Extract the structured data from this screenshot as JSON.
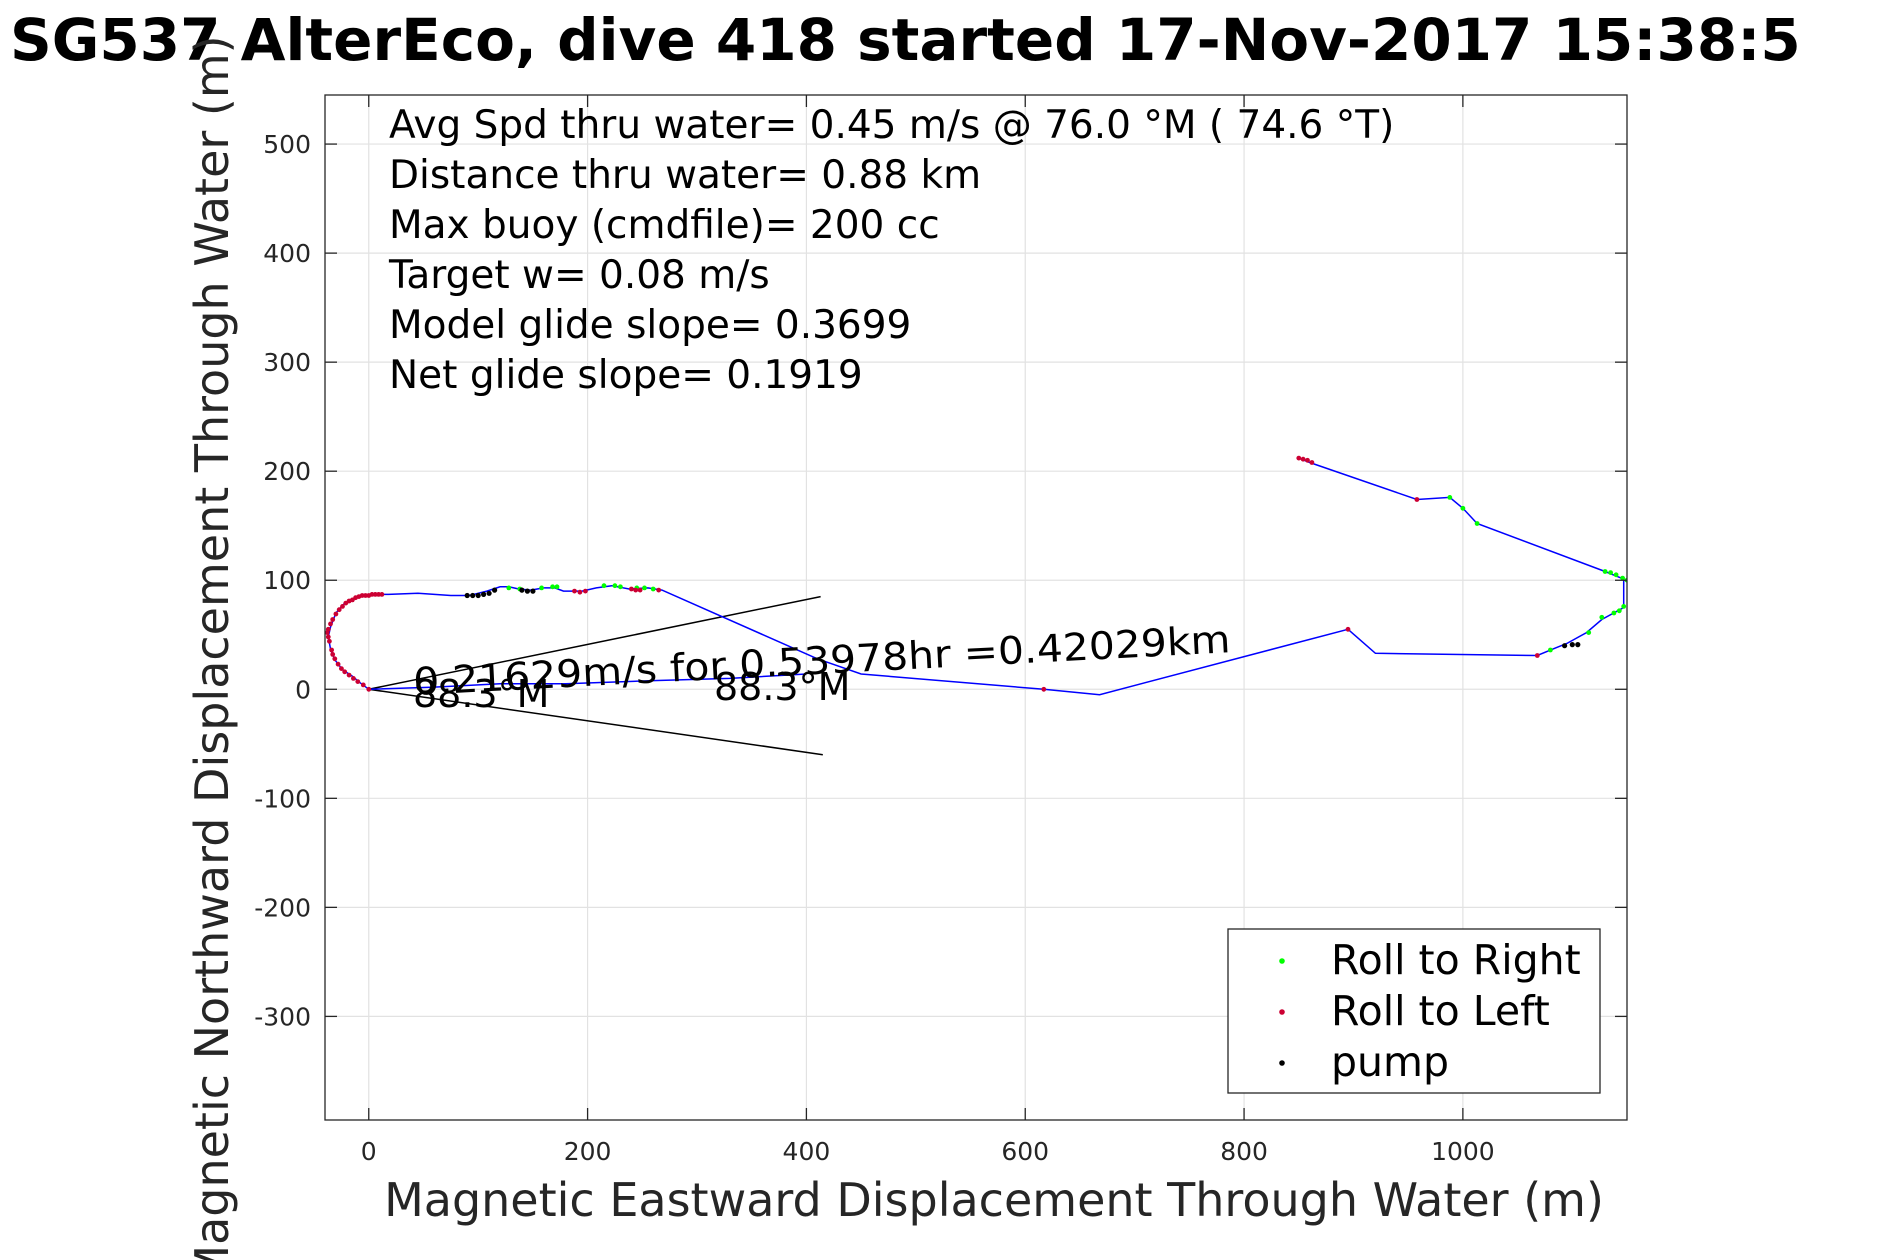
{
  "chart_data": {
    "type": "line",
    "title": "SG537 AlterEco, dive 418 started 17-Nov-2017 15:38:5",
    "xlabel": "Magnetic Eastward Displacement Through Water (m)",
    "ylabel": "Magnetic Northward Displacement Through Water (m)",
    "xlim": [
      -40,
      1150
    ],
    "ylim": [
      -395,
      545
    ],
    "xticks": [
      0,
      200,
      400,
      600,
      800,
      1000
    ],
    "xtick_labels": [
      "0",
      "200",
      "400",
      "600",
      "800",
      "1000"
    ],
    "yticks": [
      -300,
      -200,
      -100,
      0,
      100,
      200,
      300,
      400,
      500
    ],
    "ytick_labels": [
      "-300",
      "-200",
      "-100",
      "0",
      "100",
      "200",
      "300",
      "400",
      "500"
    ],
    "grid": true,
    "legend_position": "bottom-right",
    "info_lines": [
      "Avg Spd thru water=  0.45 m/s @  76.0 °M ( 74.6 °T)",
      "Distance thru water=  0.88 km",
      "Max buoy (cmdfile)= 200 cc",
      "Target w= 0.08 m/s",
      "Model glide slope= 0.3699",
      "Net glide slope= 0.1919"
    ],
    "annotations": {
      "speed": "0.21629m/s for 0.53978hr =0.42029km",
      "heading_left": "88.3°M",
      "heading_right": "88.3°M"
    },
    "colors": {
      "track": "#0000ff",
      "roll_right": "#00ff00",
      "roll_left": "#cc0033",
      "pump": "#000000",
      "cone": "#000000"
    },
    "track": [
      [
        850,
        212
      ],
      [
        860,
        208
      ],
      [
        958,
        174
      ],
      [
        988,
        176
      ],
      [
        1000,
        166
      ],
      [
        1013,
        152
      ],
      [
        1130,
        108
      ],
      [
        1147,
        101
      ],
      [
        1147,
        75
      ],
      [
        1127,
        64
      ],
      [
        1113,
        52
      ],
      [
        1095,
        42
      ],
      [
        1085,
        38
      ],
      [
        1068,
        31
      ],
      [
        920,
        33
      ],
      [
        895,
        55
      ],
      [
        668,
        -5
      ],
      [
        617,
        0
      ],
      [
        450,
        14
      ],
      [
        410,
        28
      ],
      [
        268,
        91
      ],
      [
        255,
        93
      ],
      [
        238,
        92
      ],
      [
        222,
        95
      ],
      [
        208,
        93
      ],
      [
        195,
        90
      ],
      [
        178,
        90
      ],
      [
        170,
        93
      ],
      [
        160,
        93
      ],
      [
        148,
        91
      ],
      [
        137,
        92
      ],
      [
        128,
        94
      ],
      [
        120,
        94
      ],
      [
        108,
        90
      ],
      [
        92,
        86
      ],
      [
        75,
        86
      ],
      [
        45,
        88
      ],
      [
        18,
        87
      ],
      [
        8,
        87
      ],
      [
        -2,
        86
      ],
      [
        -12,
        84
      ],
      [
        -22,
        79
      ],
      [
        -30,
        70
      ],
      [
        -35,
        57
      ],
      [
        -37,
        48
      ],
      [
        -35,
        37
      ],
      [
        -31,
        27
      ],
      [
        -24,
        18
      ],
      [
        -15,
        12
      ],
      [
        -8,
        6
      ],
      [
        0,
        0
      ],
      [
        60,
        2
      ],
      [
        120,
        5
      ],
      [
        180,
        5
      ],
      [
        260,
        8
      ],
      [
        330,
        10
      ],
      [
        400,
        14
      ]
    ],
    "series": [
      {
        "name": "Roll to Right",
        "points": [
          [
            1130,
            108
          ],
          [
            1135,
            107
          ],
          [
            1140,
            105
          ],
          [
            1146,
            102
          ],
          [
            1150,
            100
          ],
          [
            1147,
            76
          ],
          [
            1143,
            72
          ],
          [
            1138,
            70
          ],
          [
            1127,
            66
          ],
          [
            1115,
            52
          ],
          [
            1080,
            36
          ],
          [
            988,
            176
          ],
          [
            1000,
            166
          ],
          [
            1013,
            152
          ],
          [
            128,
            93
          ],
          [
            138,
            92
          ],
          [
            158,
            93
          ],
          [
            168,
            94
          ],
          [
            172,
            94
          ],
          [
            215,
            95
          ],
          [
            225,
            95
          ],
          [
            230,
            94
          ],
          [
            245,
            93
          ],
          [
            252,
            93
          ],
          [
            260,
            92
          ]
        ]
      },
      {
        "name": "Roll to Left",
        "points": [
          [
            850,
            212
          ],
          [
            854,
            211
          ],
          [
            858,
            210
          ],
          [
            862,
            208
          ],
          [
            958,
            174
          ],
          [
            1068,
            31
          ],
          [
            895,
            55
          ],
          [
            617,
            0
          ],
          [
            -37,
            55
          ],
          [
            -38,
            52
          ],
          [
            -37,
            48
          ],
          [
            -36,
            44
          ],
          [
            -35,
            60
          ],
          [
            -33,
            64
          ],
          [
            -30,
            69
          ],
          [
            -27,
            73
          ],
          [
            -24,
            76
          ],
          [
            -21,
            79
          ],
          [
            -18,
            81
          ],
          [
            -15,
            82
          ],
          [
            -12,
            84
          ],
          [
            -9,
            85
          ],
          [
            -6,
            86
          ],
          [
            -3,
            86
          ],
          [
            0,
            86
          ],
          [
            3,
            87
          ],
          [
            6,
            87
          ],
          [
            9,
            87
          ],
          [
            12,
            87
          ],
          [
            -34,
            36
          ],
          [
            -33,
            32
          ],
          [
            -31,
            28
          ],
          [
            -28,
            23
          ],
          [
            -25,
            19
          ],
          [
            -22,
            16
          ],
          [
            -18,
            13
          ],
          [
            -14,
            10
          ],
          [
            -10,
            7
          ],
          [
            -5,
            4
          ],
          [
            0,
            0
          ],
          [
            188,
            90
          ],
          [
            193,
            89
          ],
          [
            198,
            90
          ],
          [
            240,
            92
          ],
          [
            244,
            91
          ],
          [
            248,
            91
          ],
          [
            265,
            91
          ]
        ]
      },
      {
        "name": "pump",
        "points": [
          [
            90,
            86
          ],
          [
            95,
            86
          ],
          [
            100,
            86
          ],
          [
            105,
            87
          ],
          [
            110,
            88
          ],
          [
            115,
            91
          ],
          [
            140,
            91
          ],
          [
            145,
            90
          ],
          [
            150,
            90
          ],
          [
            1093,
            40
          ],
          [
            1100,
            41
          ],
          [
            1105,
            41
          ]
        ]
      }
    ],
    "cone": {
      "origin": [
        0,
        0
      ],
      "upper_end": [
        413,
        85
      ],
      "lower_end": [
        415,
        -60
      ]
    }
  }
}
